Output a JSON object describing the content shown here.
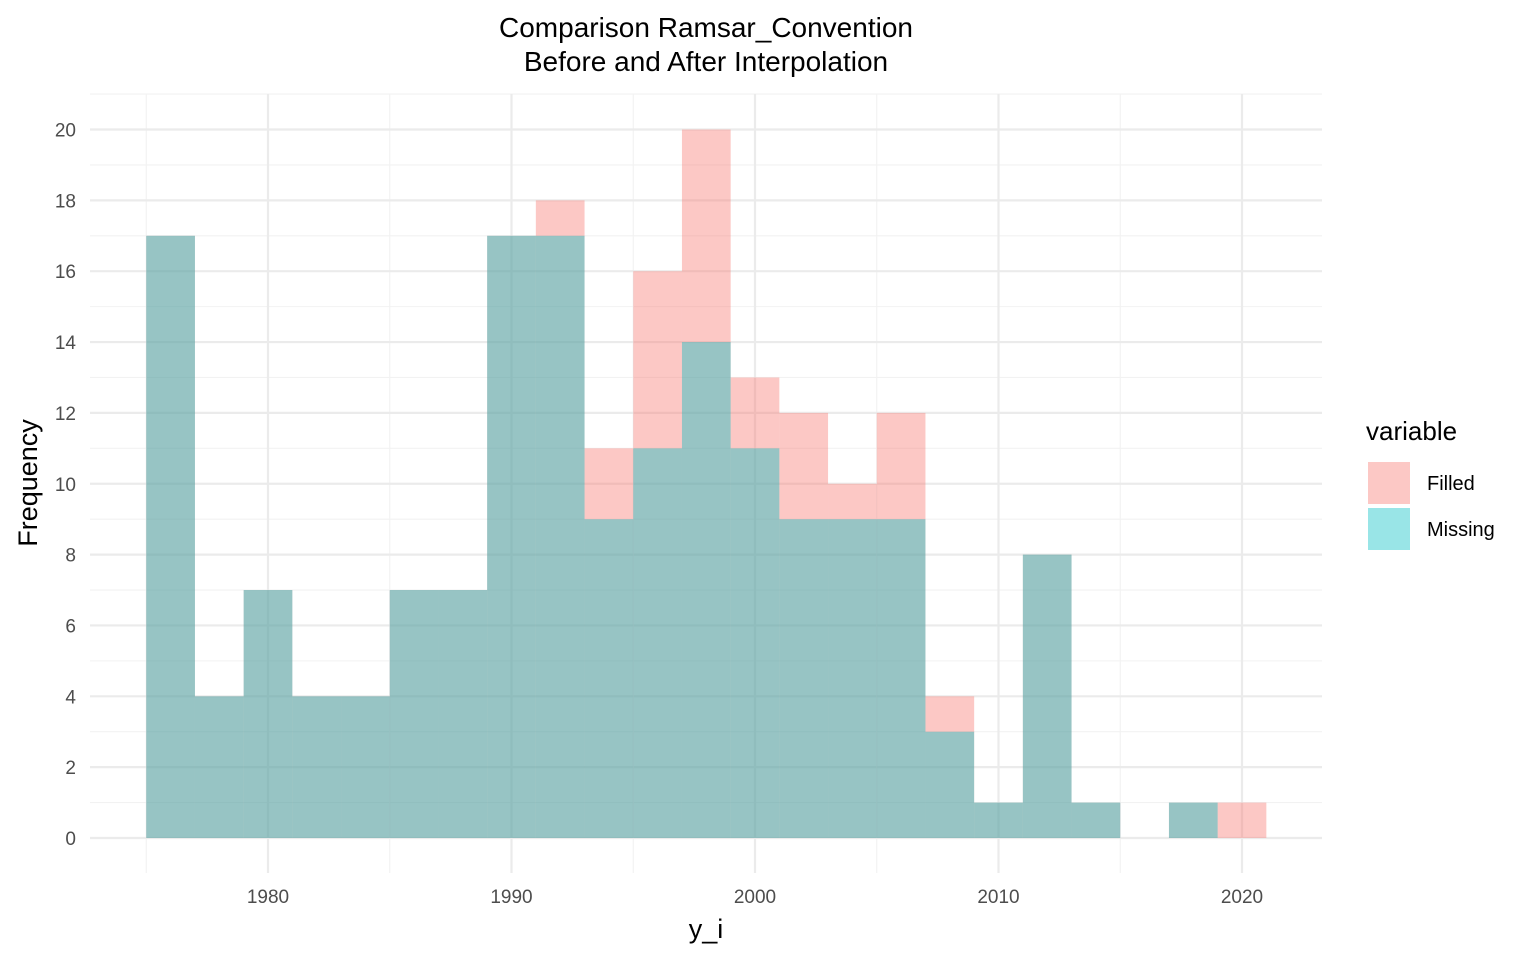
{
  "chart_data": {
    "type": "bar",
    "title": [
      "Comparison Ramsar_Convention",
      "Before and After Interpolation"
    ],
    "xlabel": "y_i",
    "ylabel": "Frequency",
    "xlim": [
      1972.7,
      1923.3
    ],
    "ylim": [
      -1,
      21
    ],
    "x_ticks": [
      1980,
      1990,
      2000,
      2010,
      2020
    ],
    "y_ticks": [
      0,
      2,
      4,
      6,
      8,
      10,
      12,
      14,
      16,
      18,
      20
    ],
    "grid": true,
    "bin_width": 2,
    "legend": {
      "title": "variable",
      "position": "right",
      "entries": [
        {
          "label": "Filled",
          "color": "#F8766D"
        },
        {
          "label": "Missing",
          "color": "#00BFC4"
        }
      ]
    },
    "series": [
      {
        "name": "Filled",
        "color": "#F8766D",
        "opacity": 0.4,
        "bins": [
          {
            "x0": 1975,
            "x1": 1977,
            "count": 17
          },
          {
            "x0": 1977,
            "x1": 1979,
            "count": 4
          },
          {
            "x0": 1979,
            "x1": 1981,
            "count": 7
          },
          {
            "x0": 1981,
            "x1": 1983,
            "count": 4
          },
          {
            "x0": 1983,
            "x1": 1985,
            "count": 4
          },
          {
            "x0": 1985,
            "x1": 1987,
            "count": 7
          },
          {
            "x0": 1987,
            "x1": 1989,
            "count": 7
          },
          {
            "x0": 1989,
            "x1": 1991,
            "count": 17
          },
          {
            "x0": 1991,
            "x1": 1993,
            "count": 18
          },
          {
            "x0": 1993,
            "x1": 1995,
            "count": 11
          },
          {
            "x0": 1995,
            "x1": 1997,
            "count": 16
          },
          {
            "x0": 1997,
            "x1": 1999,
            "count": 20
          },
          {
            "x0": 1999,
            "x1": 2001,
            "count": 13
          },
          {
            "x0": 2001,
            "x1": 2003,
            "count": 12
          },
          {
            "x0": 2003,
            "x1": 2005,
            "count": 10
          },
          {
            "x0": 2005,
            "x1": 2007,
            "count": 12
          },
          {
            "x0": 2007,
            "x1": 2009,
            "count": 4
          },
          {
            "x0": 2009,
            "x1": 2011,
            "count": 1
          },
          {
            "x0": 2011,
            "x1": 2013,
            "count": 8
          },
          {
            "x0": 2013,
            "x1": 2015,
            "count": 1
          },
          {
            "x0": 2015,
            "x1": 2017,
            "count": 0
          },
          {
            "x0": 2017,
            "x1": 2019,
            "count": 1
          },
          {
            "x0": 2019,
            "x1": 2021,
            "count": 1
          }
        ]
      },
      {
        "name": "Missing",
        "color": "#00BFC4",
        "opacity": 0.4,
        "bins": [
          {
            "x0": 1975,
            "x1": 1977,
            "count": 17
          },
          {
            "x0": 1977,
            "x1": 1979,
            "count": 4
          },
          {
            "x0": 1979,
            "x1": 1981,
            "count": 7
          },
          {
            "x0": 1981,
            "x1": 1983,
            "count": 4
          },
          {
            "x0": 1983,
            "x1": 1985,
            "count": 4
          },
          {
            "x0": 1985,
            "x1": 1987,
            "count": 7
          },
          {
            "x0": 1987,
            "x1": 1989,
            "count": 7
          },
          {
            "x0": 1989,
            "x1": 1991,
            "count": 17
          },
          {
            "x0": 1991,
            "x1": 1993,
            "count": 17
          },
          {
            "x0": 1993,
            "x1": 1995,
            "count": 9
          },
          {
            "x0": 1995,
            "x1": 1997,
            "count": 11
          },
          {
            "x0": 1997,
            "x1": 1999,
            "count": 14
          },
          {
            "x0": 1999,
            "x1": 2001,
            "count": 11
          },
          {
            "x0": 2001,
            "x1": 2003,
            "count": 9
          },
          {
            "x0": 2003,
            "x1": 2005,
            "count": 9
          },
          {
            "x0": 2005,
            "x1": 2007,
            "count": 9
          },
          {
            "x0": 2007,
            "x1": 2009,
            "count": 3
          },
          {
            "x0": 2009,
            "x1": 2011,
            "count": 1
          },
          {
            "x0": 2011,
            "x1": 2013,
            "count": 8
          },
          {
            "x0": 2013,
            "x1": 2015,
            "count": 1
          },
          {
            "x0": 2015,
            "x1": 2017,
            "count": 0
          },
          {
            "x0": 2017,
            "x1": 2019,
            "count": 1
          },
          {
            "x0": 2019,
            "x1": 2021,
            "count": 0
          }
        ]
      }
    ]
  }
}
